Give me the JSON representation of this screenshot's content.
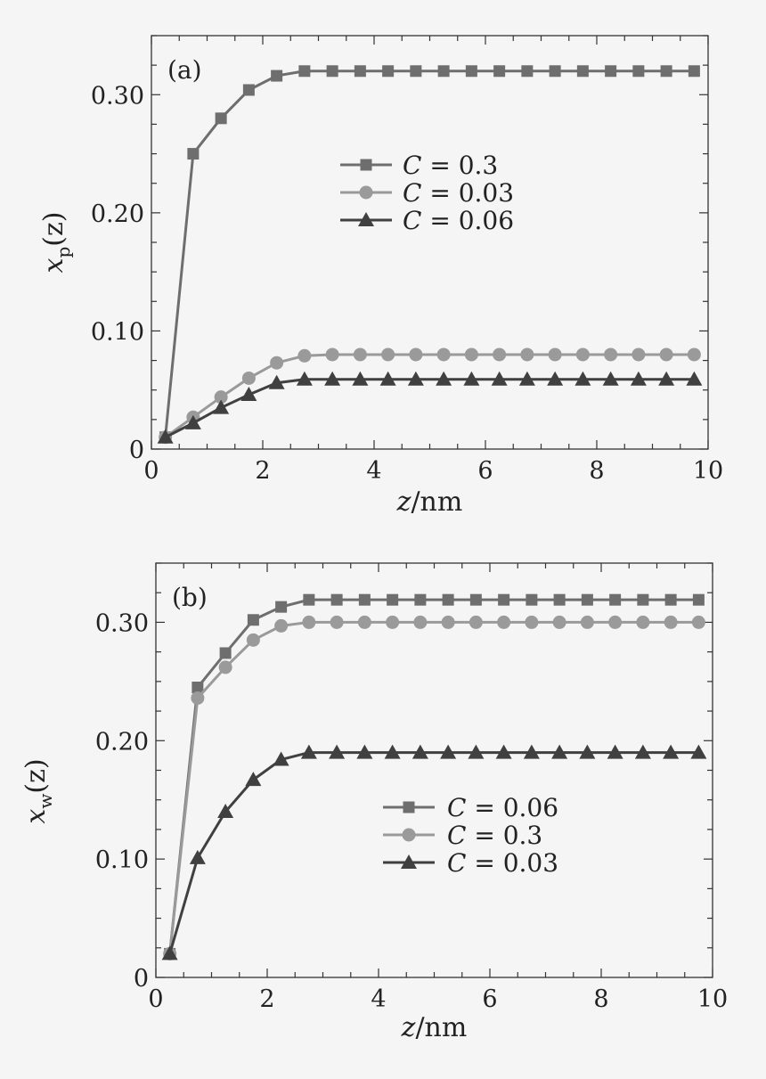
{
  "chart_data": [
    {
      "type": "line",
      "panel_label": "(a)",
      "ylabel": "xp(z)",
      "ylabel_parts": {
        "main": "x",
        "sub": "p",
        "arg": "(z)"
      },
      "xlabel": "z/nm",
      "xlabel_parts": {
        "var": "z",
        "unit": "/nm"
      },
      "xlim": [
        0,
        10
      ],
      "ylim": [
        0,
        0.35
      ],
      "xticks": [
        0,
        2,
        4,
        6,
        8,
        10
      ],
      "xtick_labels": [
        "0",
        "2",
        "4",
        "6",
        "8",
        "10"
      ],
      "yticks": [
        0,
        0.1,
        0.2,
        0.3
      ],
      "ytick_labels": [
        "0",
        "0.10",
        "0.20",
        "0.30"
      ],
      "grid": false,
      "legend_position": "center-right",
      "x": [
        0.25,
        0.75,
        1.25,
        1.75,
        2.25,
        2.75,
        3.25,
        3.75,
        4.25,
        4.75,
        5.25,
        5.75,
        6.25,
        6.75,
        7.25,
        7.75,
        8.25,
        8.75,
        9.25,
        9.75
      ],
      "series": [
        {
          "name": "C = 0.3",
          "legend_var": "C",
          "legend_val": "0.3",
          "marker": "square",
          "color": "#6e6e6e",
          "values": [
            0.01,
            0.25,
            0.28,
            0.304,
            0.316,
            0.32,
            0.32,
            0.32,
            0.32,
            0.32,
            0.32,
            0.32,
            0.32,
            0.32,
            0.32,
            0.32,
            0.32,
            0.32,
            0.32,
            0.32
          ]
        },
        {
          "name": "C = 0.03",
          "legend_var": "C",
          "legend_val": "0.03",
          "marker": "circle",
          "color": "#9a9a9a",
          "values": [
            0.01,
            0.027,
            0.044,
            0.06,
            0.073,
            0.079,
            0.08,
            0.08,
            0.08,
            0.08,
            0.08,
            0.08,
            0.08,
            0.08,
            0.08,
            0.08,
            0.08,
            0.08,
            0.08,
            0.08
          ]
        },
        {
          "name": "C = 0.06",
          "legend_var": "C",
          "legend_val": "0.06",
          "marker": "triangle",
          "color": "#404040",
          "values": [
            0.01,
            0.022,
            0.035,
            0.046,
            0.056,
            0.059,
            0.059,
            0.059,
            0.059,
            0.059,
            0.059,
            0.059,
            0.059,
            0.059,
            0.059,
            0.059,
            0.059,
            0.059,
            0.059,
            0.059
          ]
        }
      ]
    },
    {
      "type": "line",
      "panel_label": "(b)",
      "ylabel": "xw(z)",
      "ylabel_parts": {
        "main": "x",
        "sub": "w",
        "arg": "(z)"
      },
      "xlabel": "z/nm",
      "xlabel_parts": {
        "var": "z",
        "unit": "/nm"
      },
      "xlim": [
        0,
        10
      ],
      "ylim": [
        0,
        0.35
      ],
      "xticks": [
        0,
        2,
        4,
        6,
        8,
        10
      ],
      "xtick_labels": [
        "0",
        "2",
        "4",
        "6",
        "8",
        "10"
      ],
      "yticks": [
        0,
        0.1,
        0.2,
        0.3
      ],
      "ytick_labels": [
        "0",
        "0.10",
        "0.20",
        "0.30"
      ],
      "grid": false,
      "legend_position": "lower-right",
      "x": [
        0.25,
        0.75,
        1.25,
        1.75,
        2.25,
        2.75,
        3.25,
        3.75,
        4.25,
        4.75,
        5.25,
        5.75,
        6.25,
        6.75,
        7.25,
        7.75,
        8.25,
        8.75,
        9.25,
        9.75
      ],
      "series": [
        {
          "name": "C = 0.06",
          "legend_var": "C",
          "legend_val": "0.06",
          "marker": "square",
          "color": "#6e6e6e",
          "values": [
            0.02,
            0.245,
            0.274,
            0.302,
            0.313,
            0.319,
            0.319,
            0.319,
            0.319,
            0.319,
            0.319,
            0.319,
            0.319,
            0.319,
            0.319,
            0.319,
            0.319,
            0.319,
            0.319,
            0.319
          ]
        },
        {
          "name": "C = 0.3",
          "legend_var": "C",
          "legend_val": "0.3",
          "marker": "circle",
          "color": "#9a9a9a",
          "values": [
            0.02,
            0.236,
            0.262,
            0.285,
            0.297,
            0.3,
            0.3,
            0.3,
            0.3,
            0.3,
            0.3,
            0.3,
            0.3,
            0.3,
            0.3,
            0.3,
            0.3,
            0.3,
            0.3,
            0.3
          ]
        },
        {
          "name": "C = 0.03",
          "legend_var": "C",
          "legend_val": "0.03",
          "marker": "triangle",
          "color": "#404040",
          "values": [
            0.02,
            0.101,
            0.14,
            0.167,
            0.184,
            0.19,
            0.19,
            0.19,
            0.19,
            0.19,
            0.19,
            0.19,
            0.19,
            0.19,
            0.19,
            0.19,
            0.19,
            0.19,
            0.19,
            0.19
          ]
        }
      ]
    }
  ]
}
